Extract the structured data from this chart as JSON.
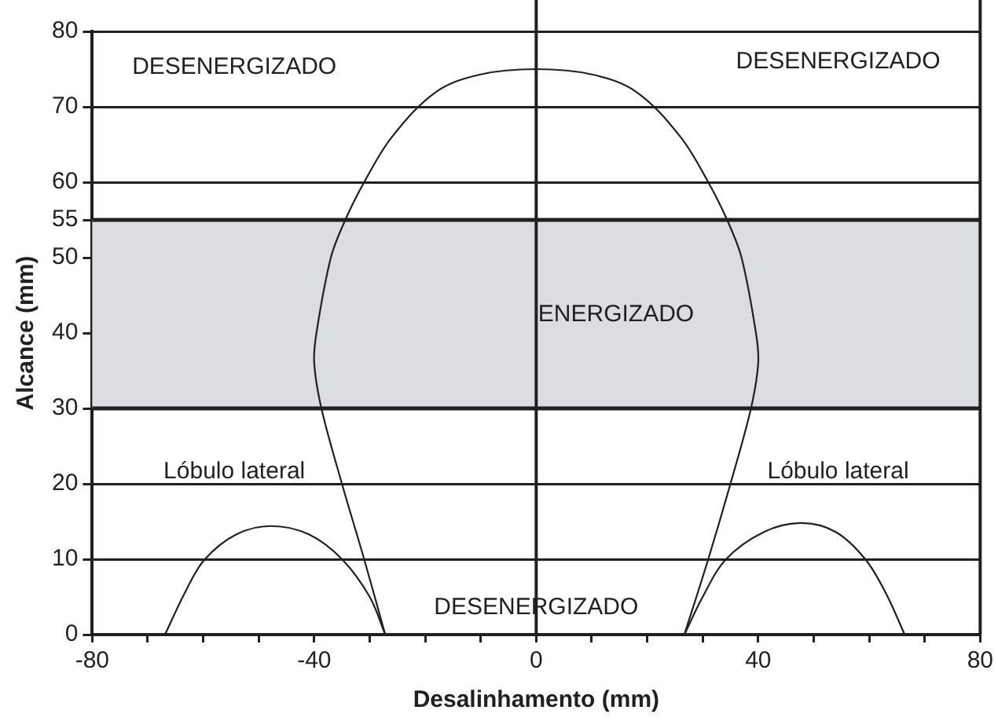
{
  "chart_data": {
    "type": "line",
    "xlabel": "Desalinhamento (mm)",
    "ylabel": "Alcance (mm)",
    "xlim": [
      -80,
      80
    ],
    "ylim": [
      0,
      80
    ],
    "xticks": [
      -80,
      {
        "value": -70,
        "label": null
      },
      {
        "value": -60,
        "label": null
      },
      {
        "value": -50,
        "label": null
      },
      -40,
      {
        "value": -30,
        "label": null
      },
      {
        "value": -20,
        "label": null
      },
      {
        "value": -10,
        "label": null
      },
      0,
      {
        "value": 10,
        "label": null
      },
      {
        "value": 20,
        "label": null
      },
      {
        "value": 30,
        "label": null
      },
      40,
      {
        "value": 50,
        "label": null
      },
      {
        "value": 60,
        "label": null
      },
      {
        "value": 70,
        "label": null
      },
      80
    ],
    "yticks": [
      0,
      10,
      20,
      30,
      40,
      50,
      55,
      60,
      70,
      80
    ],
    "grid": "y",
    "marker": "none",
    "line_style": "solid",
    "series": [
      {
        "color": "#231f20",
        "x": [
          -27.2,
          -31,
          -35,
          -38.7,
          -40,
          -39.6,
          -37,
          -34.4,
          -31,
          -26,
          -18,
          -10,
          0,
          10,
          18,
          26,
          31,
          34.4,
          37,
          39.6,
          40,
          38.7,
          35,
          31,
          26.7
        ],
        "values": [
          0,
          10,
          20,
          30,
          36,
          40,
          50,
          55,
          60,
          66,
          72,
          74.3,
          75,
          74.3,
          72,
          66,
          60,
          55,
          50,
          40,
          36,
          30,
          20,
          10,
          0
        ]
      },
      {
        "color": "#231f20",
        "x": [
          -66.9,
          -63,
          -59.7,
          -54,
          -47.8,
          -41,
          -35,
          -30,
          -27.2
        ],
        "values": [
          0,
          6,
          10,
          13.3,
          14.4,
          13.3,
          10,
          5,
          0
        ]
      },
      {
        "color": "#231f20",
        "x": [
          26.7,
          30,
          34.2,
          41,
          47.8,
          54,
          59.3,
          63,
          66.4
        ],
        "values": [
          0,
          5,
          10,
          13.6,
          14.8,
          13.6,
          10,
          5.5,
          0
        ]
      }
    ],
    "bands": [
      {
        "axis": "y",
        "from": 30,
        "to": 55,
        "color": "#dcdde0"
      }
    ],
    "ref_lines": [
      {
        "axis": "x",
        "value": 0,
        "color": "#231f20"
      }
    ],
    "annotations": [
      "DESENERGIZADO",
      "DESENERGIZADO",
      "ENERGIZADO",
      "Lóbulo lateral",
      "Lóbulo lateral",
      "DESENERGIZADO"
    ]
  }
}
